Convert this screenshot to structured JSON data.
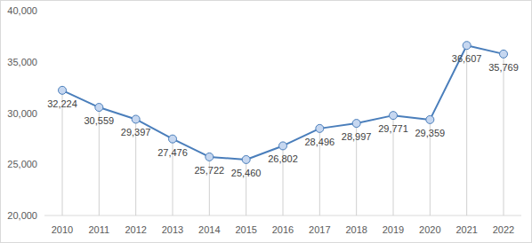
{
  "chart_data": {
    "type": "line",
    "categories": [
      "2010",
      "2011",
      "2012",
      "2013",
      "2014",
      "2015",
      "2016",
      "2017",
      "2018",
      "2019",
      "2020",
      "2021",
      "2022"
    ],
    "values": [
      32224,
      30559,
      29397,
      27476,
      25722,
      25460,
      26802,
      28496,
      28997,
      29771,
      29359,
      36607,
      35769
    ],
    "value_labels": [
      "32,224",
      "30,559",
      "29,397",
      "27,476",
      "25,722",
      "25,460",
      "26,802",
      "28,496",
      "28,997",
      "29,771",
      "29,359",
      "36,607",
      "35,769"
    ],
    "color": "#4a7ebb",
    "marker": "circle",
    "data_labels": true,
    "grid": false,
    "ylim": [
      20000,
      40000
    ],
    "yticks": [
      {
        "value": 20000,
        "label": "20,000"
      },
      {
        "value": 25000,
        "label": "25,000"
      },
      {
        "value": 30000,
        "label": "30,000"
      },
      {
        "value": 35000,
        "label": "35,000"
      },
      {
        "value": 40000,
        "label": "40,000"
      }
    ]
  }
}
